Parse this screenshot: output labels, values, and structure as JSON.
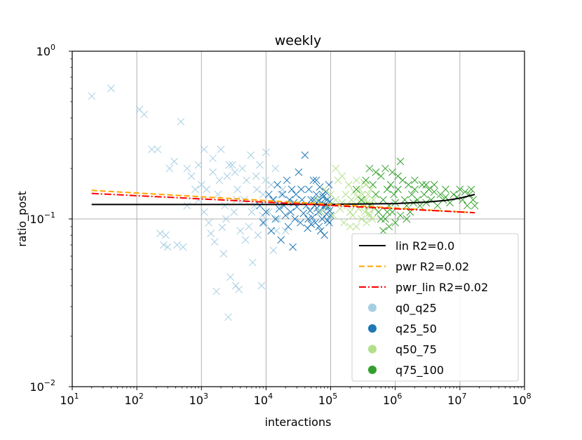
{
  "chart_data": {
    "type": "scatter",
    "title": "weekly",
    "xlabel": "interactions",
    "ylabel": "ratio_post",
    "xscale": "log",
    "yscale": "log",
    "xlim": [
      10,
      100000000
    ],
    "ylim": [
      0.01,
      1
    ],
    "grid": true,
    "legend_location": "lower-right",
    "x_ticks": [
      {
        "value": 10,
        "base": "10",
        "exp": "1"
      },
      {
        "value": 100,
        "base": "10",
        "exp": "2"
      },
      {
        "value": 1000,
        "base": "10",
        "exp": "3"
      },
      {
        "value": 10000,
        "base": "10",
        "exp": "4"
      },
      {
        "value": 100000,
        "base": "10",
        "exp": "5"
      },
      {
        "value": 1000000,
        "base": "10",
        "exp": "6"
      },
      {
        "value": 10000000,
        "base": "10",
        "exp": "7"
      },
      {
        "value": 100000000,
        "base": "10",
        "exp": "8"
      }
    ],
    "y_ticks": [
      {
        "value": 0.01,
        "base": "10",
        "exp": "−2"
      },
      {
        "value": 0.1,
        "base": "10",
        "exp": "−1"
      },
      {
        "value": 1,
        "base": "10",
        "exp": "0"
      }
    ],
    "fits": [
      {
        "name": "lin R2=0.0",
        "color": "#000000",
        "dash": "solid",
        "x": [
          20,
          100,
          1000,
          10000,
          100000,
          1000000,
          3000000,
          6000000,
          10000000,
          17000000
        ],
        "y": [
          0.122,
          0.122,
          0.122,
          0.122,
          0.1222,
          0.1235,
          0.126,
          0.129,
          0.133,
          0.14
        ]
      },
      {
        "name": "pwr R2=0.02",
        "color": "#ffa500",
        "dash": "dashed",
        "x": [
          20,
          17000000
        ],
        "y": [
          0.148,
          0.109
        ]
      },
      {
        "name": "pwr_lin R2=0.02",
        "color": "#ff0000",
        "dash": "dashdot",
        "x": [
          20,
          17000000
        ],
        "y": [
          0.142,
          0.109
        ]
      }
    ],
    "series": [
      {
        "name": "q0_q25",
        "color": "#a6cee3",
        "marker": "x",
        "points": [
          [
            20,
            0.54
          ],
          [
            40,
            0.6
          ],
          [
            110,
            0.45
          ],
          [
            130,
            0.42
          ],
          [
            170,
            0.26
          ],
          [
            210,
            0.26
          ],
          [
            230,
            0.082
          ],
          [
            260,
            0.07
          ],
          [
            280,
            0.08
          ],
          [
            300,
            0.068
          ],
          [
            320,
            0.2
          ],
          [
            380,
            0.22
          ],
          [
            420,
            0.07
          ],
          [
            480,
            0.38
          ],
          [
            520,
            0.068
          ],
          [
            600,
            0.2
          ],
          [
            700,
            0.18
          ],
          [
            800,
            0.15
          ],
          [
            900,
            0.21
          ],
          [
            1000,
            0.16
          ],
          [
            1100,
            0.26
          ],
          [
            1200,
            0.15
          ],
          [
            1300,
            0.095
          ],
          [
            1400,
            0.082
          ],
          [
            1500,
            0.19
          ],
          [
            1600,
            0.073
          ],
          [
            1700,
            0.037
          ],
          [
            1800,
            0.14
          ],
          [
            1900,
            0.17
          ],
          [
            2000,
            0.26
          ],
          [
            2100,
            0.089
          ],
          [
            2200,
            0.062
          ],
          [
            2300,
            0.12
          ],
          [
            2500,
            0.18
          ],
          [
            2600,
            0.026
          ],
          [
            2800,
            0.045
          ],
          [
            3000,
            0.21
          ],
          [
            3200,
            0.11
          ],
          [
            3400,
            0.04
          ],
          [
            3600,
            0.15
          ],
          [
            3800,
            0.038
          ],
          [
            4000,
            0.085
          ],
          [
            4300,
            0.2
          ],
          [
            4600,
            0.13
          ],
          [
            5000,
            0.17
          ],
          [
            5400,
            0.09
          ],
          [
            5800,
            0.24
          ],
          [
            6200,
            0.055
          ],
          [
            6600,
            0.12
          ],
          [
            7000,
            0.18
          ],
          [
            7500,
            0.08
          ],
          [
            8000,
            0.21
          ],
          [
            8500,
            0.04
          ],
          [
            9000,
            0.14
          ],
          [
            9500,
            0.095
          ],
          [
            10000,
            0.25
          ],
          [
            11000,
            0.11
          ],
          [
            12000,
            0.16
          ],
          [
            13000,
            0.065
          ],
          [
            14000,
            0.2
          ],
          [
            15000,
            0.1
          ],
          [
            16000,
            0.12
          ],
          [
            18000,
            0.15
          ],
          [
            20000,
            0.085
          ],
          [
            900,
            0.13
          ],
          [
            1100,
            0.11
          ],
          [
            600,
            0.12
          ],
          [
            2400,
            0.1
          ],
          [
            3500,
            0.13
          ],
          [
            4800,
            0.075
          ],
          [
            7200,
            0.15
          ],
          [
            8800,
            0.105
          ],
          [
            1500,
            0.23
          ],
          [
            2700,
            0.21
          ],
          [
            3300,
            0.19
          ],
          [
            6000,
            0.11
          ],
          [
            9800,
            0.17
          ],
          [
            12500,
            0.13
          ],
          [
            14500,
            0.085
          ],
          [
            17000,
            0.14
          ]
        ]
      },
      {
        "name": "q25_50",
        "color": "#1f78b4",
        "marker": "x",
        "points": [
          [
            8000,
            0.12
          ],
          [
            9000,
            0.095
          ],
          [
            10000,
            0.11
          ],
          [
            11000,
            0.14
          ],
          [
            12000,
            0.085
          ],
          [
            13000,
            0.13
          ],
          [
            14000,
            0.1
          ],
          [
            15000,
            0.16
          ],
          [
            16000,
            0.115
          ],
          [
            17000,
            0.075
          ],
          [
            18000,
            0.14
          ],
          [
            19000,
            0.12
          ],
          [
            20000,
            0.105
          ],
          [
            21000,
            0.17
          ],
          [
            22000,
            0.09
          ],
          [
            23000,
            0.13
          ],
          [
            24000,
            0.11
          ],
          [
            25000,
            0.15
          ],
          [
            26000,
            0.068
          ],
          [
            27000,
            0.125
          ],
          [
            28000,
            0.1
          ],
          [
            29000,
            0.14
          ],
          [
            30000,
            0.118
          ],
          [
            32000,
            0.19
          ],
          [
            34000,
            0.095
          ],
          [
            36000,
            0.13
          ],
          [
            38000,
            0.108
          ],
          [
            40000,
            0.24
          ],
          [
            42000,
            0.12
          ],
          [
            44000,
            0.088
          ],
          [
            46000,
            0.15
          ],
          [
            48000,
            0.112
          ],
          [
            50000,
            0.13
          ],
          [
            52000,
            0.102
          ],
          [
            54000,
            0.17
          ],
          [
            56000,
            0.12
          ],
          [
            58000,
            0.095
          ],
          [
            60000,
            0.14
          ],
          [
            62000,
            0.116
          ],
          [
            64000,
            0.128
          ],
          [
            66000,
            0.09
          ],
          [
            68000,
            0.155
          ],
          [
            70000,
            0.11
          ],
          [
            72000,
            0.125
          ],
          [
            74000,
            0.1
          ],
          [
            76000,
            0.135
          ],
          [
            78000,
            0.118
          ],
          [
            80000,
            0.08
          ],
          [
            82000,
            0.122
          ],
          [
            84000,
            0.145
          ],
          [
            86000,
            0.107
          ],
          [
            88000,
            0.13
          ],
          [
            90000,
            0.098
          ],
          [
            92000,
            0.118
          ],
          [
            94000,
            0.16
          ],
          [
            96000,
            0.112
          ],
          [
            98000,
            0.127
          ],
          [
            100000,
            0.105
          ],
          [
            35000,
            0.15
          ],
          [
            45000,
            0.1
          ],
          [
            55000,
            0.13
          ],
          [
            65000,
            0.11
          ],
          [
            75000,
            0.14
          ],
          [
            85000,
            0.12
          ],
          [
            95000,
            0.095
          ],
          [
            70000,
            0.085
          ],
          [
            60000,
            0.17
          ],
          [
            50000,
            0.093
          ]
        ]
      },
      {
        "name": "q50_75",
        "color": "#b2df8a",
        "marker": "x",
        "points": [
          [
            60000,
            0.13
          ],
          [
            70000,
            0.11
          ],
          [
            80000,
            0.15
          ],
          [
            90000,
            0.12
          ],
          [
            100000,
            0.14
          ],
          [
            110000,
            0.105
          ],
          [
            120000,
            0.13
          ],
          [
            130000,
            0.17
          ],
          [
            140000,
            0.115
          ],
          [
            150000,
            0.125
          ],
          [
            160000,
            0.095
          ],
          [
            170000,
            0.14
          ],
          [
            180000,
            0.12
          ],
          [
            190000,
            0.16
          ],
          [
            200000,
            0.11
          ],
          [
            210000,
            0.13
          ],
          [
            220000,
            0.105
          ],
          [
            230000,
            0.145
          ],
          [
            240000,
            0.12
          ],
          [
            250000,
            0.09
          ],
          [
            260000,
            0.135
          ],
          [
            270000,
            0.115
          ],
          [
            280000,
            0.15
          ],
          [
            290000,
            0.125
          ],
          [
            300000,
            0.1
          ],
          [
            310000,
            0.14
          ],
          [
            320000,
            0.118
          ],
          [
            330000,
            0.165
          ],
          [
            340000,
            0.11
          ],
          [
            350000,
            0.13
          ],
          [
            360000,
            0.095
          ],
          [
            370000,
            0.125
          ],
          [
            380000,
            0.14
          ],
          [
            390000,
            0.108
          ],
          [
            400000,
            0.12
          ],
          [
            420000,
            0.15
          ],
          [
            440000,
            0.1
          ],
          [
            460000,
            0.13
          ],
          [
            480000,
            0.115
          ],
          [
            500000,
            0.14
          ],
          [
            120000,
            0.2
          ],
          [
            150000,
            0.18
          ],
          [
            200000,
            0.09
          ],
          [
            250000,
            0.17
          ],
          [
            300000,
            0.13
          ],
          [
            350000,
            0.16
          ],
          [
            400000,
            0.105
          ],
          [
            450000,
            0.12
          ]
        ]
      },
      {
        "name": "q75_100",
        "color": "#33a02c",
        "marker": "x",
        "points": [
          [
            250000,
            0.15
          ],
          [
            300000,
            0.13
          ],
          [
            350000,
            0.17
          ],
          [
            400000,
            0.12
          ],
          [
            450000,
            0.16
          ],
          [
            500000,
            0.14
          ],
          [
            550000,
            0.11
          ],
          [
            600000,
            0.18
          ],
          [
            650000,
            0.13
          ],
          [
            700000,
            0.1
          ],
          [
            750000,
            0.15
          ],
          [
            800000,
            0.12
          ],
          [
            850000,
            0.16
          ],
          [
            900000,
            0.11
          ],
          [
            950000,
            0.14
          ],
          [
            1000000,
            0.125
          ],
          [
            1100000,
            0.15
          ],
          [
            1200000,
            0.105
          ],
          [
            1300000,
            0.17
          ],
          [
            1400000,
            0.13
          ],
          [
            1500000,
            0.12
          ],
          [
            1600000,
            0.16
          ],
          [
            1700000,
            0.11
          ],
          [
            1800000,
            0.14
          ],
          [
            1900000,
            0.125
          ],
          [
            2000000,
            0.15
          ],
          [
            2200000,
            0.13
          ],
          [
            2400000,
            0.12
          ],
          [
            2600000,
            0.16
          ],
          [
            2800000,
            0.14
          ],
          [
            3000000,
            0.125
          ],
          [
            3300000,
            0.15
          ],
          [
            3600000,
            0.13
          ],
          [
            4000000,
            0.145
          ],
          [
            4500000,
            0.12
          ],
          [
            5000000,
            0.14
          ],
          [
            5500000,
            0.13
          ],
          [
            6000000,
            0.15
          ],
          [
            7000000,
            0.125
          ],
          [
            8000000,
            0.14
          ],
          [
            9000000,
            0.135
          ],
          [
            10000000,
            0.15
          ],
          [
            11000000,
            0.13
          ],
          [
            12000000,
            0.145
          ],
          [
            13000000,
            0.12
          ],
          [
            14000000,
            0.14
          ],
          [
            15000000,
            0.15
          ],
          [
            16000000,
            0.13
          ],
          [
            17000000,
            0.12
          ],
          [
            700000,
            0.2
          ],
          [
            900000,
            0.19
          ],
          [
            1200000,
            0.22
          ],
          [
            500000,
            0.19
          ],
          [
            800000,
            0.09
          ],
          [
            1000000,
            0.095
          ],
          [
            600000,
            0.1
          ],
          [
            2000000,
            0.17
          ],
          [
            3000000,
            0.16
          ],
          [
            1500000,
            0.1
          ],
          [
            400000,
            0.2
          ],
          [
            650000,
            0.085
          ],
          [
            750000,
            0.11
          ],
          [
            1100000,
            0.18
          ],
          [
            4000000,
            0.16
          ],
          [
            6000000,
            0.135
          ]
        ]
      }
    ]
  }
}
